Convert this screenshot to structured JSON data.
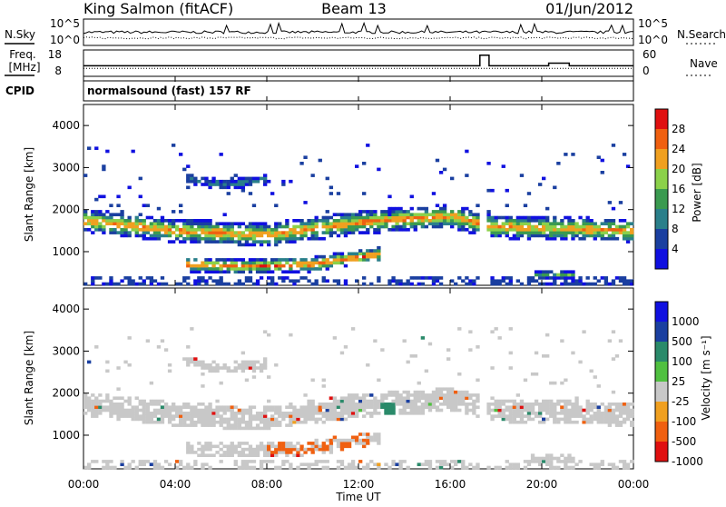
{
  "header": {
    "station": "King Salmon (fitACF)",
    "beam": "Beam 13",
    "date": "01/Jun/2012"
  },
  "status_panels": {
    "nsky_label": "N.Sky",
    "nsky_ticks": [
      "10^5",
      "10^0"
    ],
    "nsearch_label": "N.Search",
    "nsearch_ticks": [
      "10^5",
      "10^0"
    ],
    "freq_label": "Freq.",
    "freq_unit": "[MHz]",
    "freq_ticks": [
      "18",
      "8"
    ],
    "nave_label": "Nave",
    "nave_ticks": [
      "60",
      "0"
    ],
    "cpid_label": "CPID",
    "cpid_value": "normalsound (fast) 157 RF"
  },
  "colors": {
    "power_scale": [
      "#1010e0",
      "#1a3fa0",
      "#2a7f8a",
      "#3a9a50",
      "#8bd14a",
      "#f0a020",
      "#f06010",
      "#e01010"
    ],
    "velocity_scale": [
      "#1010e0",
      "#1a3fa0",
      "#2a8a6a",
      "#50c040",
      "#c8c8c8",
      "#f0a020",
      "#f06010",
      "#e01010"
    ]
  },
  "chart_data": [
    {
      "type": "heatmap",
      "panel": "power",
      "ylabel": "Slant Range [km]",
      "y_ticks": [
        "1000",
        "2000",
        "3000",
        "4000"
      ],
      "ylim": [
        200,
        4500
      ],
      "colorbar_label": "Power [dB]",
      "colorbar_ticks": [
        "4",
        "8",
        "12",
        "16",
        "20",
        "24",
        "28"
      ],
      "clim": [
        0,
        30
      ],
      "bands": [
        {
          "t": [
            0,
            4,
            8,
            12,
            16,
            17.5,
            18,
            24
          ],
          "center": [
            1750,
            1500,
            1400,
            1700,
            1850,
            1650,
            1600,
            1500
          ],
          "width": 400,
          "peak": 22
        },
        {
          "t": [
            4.5,
            7,
            10,
            13
          ],
          "center": [
            700,
            650,
            700,
            950
          ],
          "width": 250,
          "peak": 24
        },
        {
          "t": [
            4.5,
            6,
            8
          ],
          "center": [
            2750,
            2600,
            2700
          ],
          "width": 180,
          "peak": 8
        },
        {
          "t": [
            19.5,
            21.5
          ],
          "center": [
            450,
            450
          ],
          "width": 150,
          "peak": 12
        }
      ]
    },
    {
      "type": "heatmap",
      "panel": "velocity",
      "ylabel": "Slant Range [km]",
      "y_ticks": [
        "1000",
        "2000",
        "3000",
        "4000"
      ],
      "ylim": [
        200,
        4500
      ],
      "xlabel": "Time UT",
      "x_ticks": [
        "00:00",
        "04:00",
        "08:00",
        "12:00",
        "16:00",
        "20:00",
        "00:00"
      ],
      "xlim": [
        0,
        24
      ],
      "colorbar_label": "Velocity [m s⁻¹]",
      "colorbar_ticks": [
        "1000",
        "500",
        "100",
        "25",
        "-25",
        "-100",
        "-500",
        "-1000"
      ]
    }
  ]
}
